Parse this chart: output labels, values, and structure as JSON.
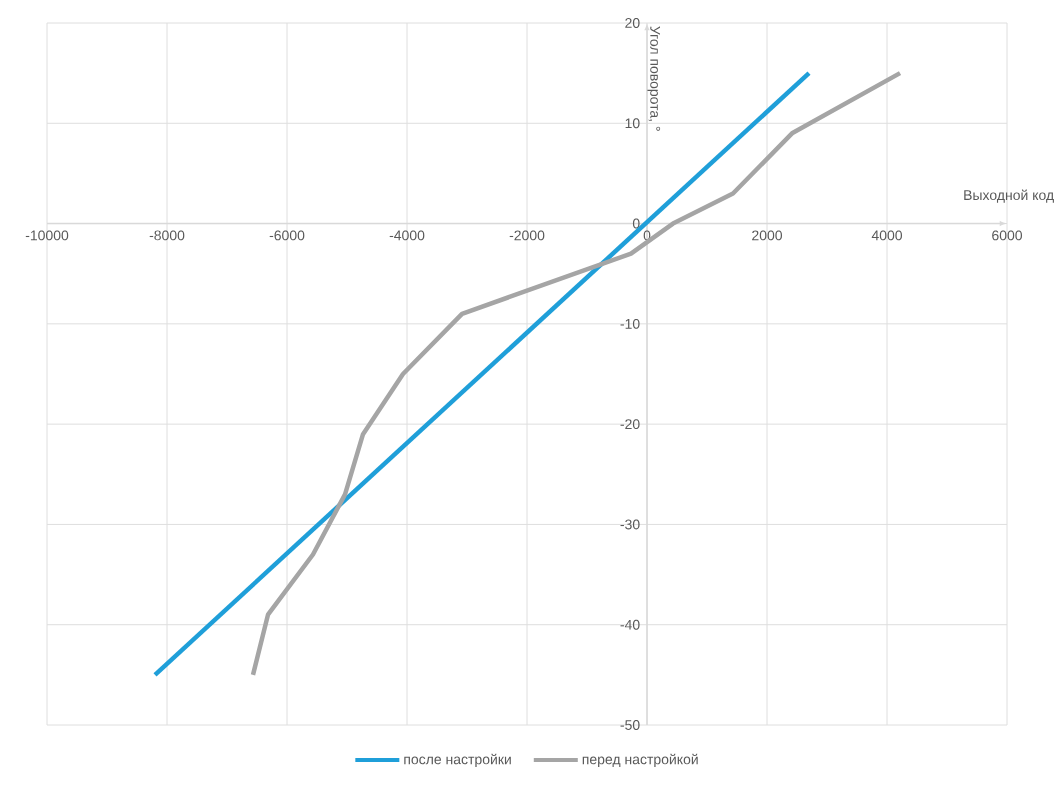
{
  "chart_data": {
    "type": "line",
    "xlabel": "Выходной код",
    "ylabel": "Угол поворота, °",
    "series": [
      {
        "name": "после настройки",
        "color": "#1f9fd9",
        "x": [
          -8200,
          2700
        ],
        "values": [
          -45,
          15
        ]
      },
      {
        "name": "перед настройкой",
        "color": "#a5a5a5",
        "x": [
          -6567,
          -6317,
          -5567,
          -5033,
          -4733,
          -4067,
          -3083,
          -267,
          433,
          1433,
          2417,
          4217
        ],
        "values": [
          -45,
          -39,
          -33,
          -27,
          -21,
          -15,
          -9,
          -3,
          0,
          3,
          9,
          15
        ]
      }
    ],
    "xlim": [
      -10000,
      6000
    ],
    "xticks": [
      -10000,
      -8000,
      -6000,
      -4000,
      -2000,
      0,
      2000,
      4000,
      6000
    ],
    "ylim": [
      -50,
      20
    ],
    "yticks": [
      -50,
      -40,
      -30,
      -20,
      -10,
      0,
      10,
      20
    ],
    "grid": true,
    "legend": "bottom",
    "line_style": "solid",
    "marker": "none"
  }
}
